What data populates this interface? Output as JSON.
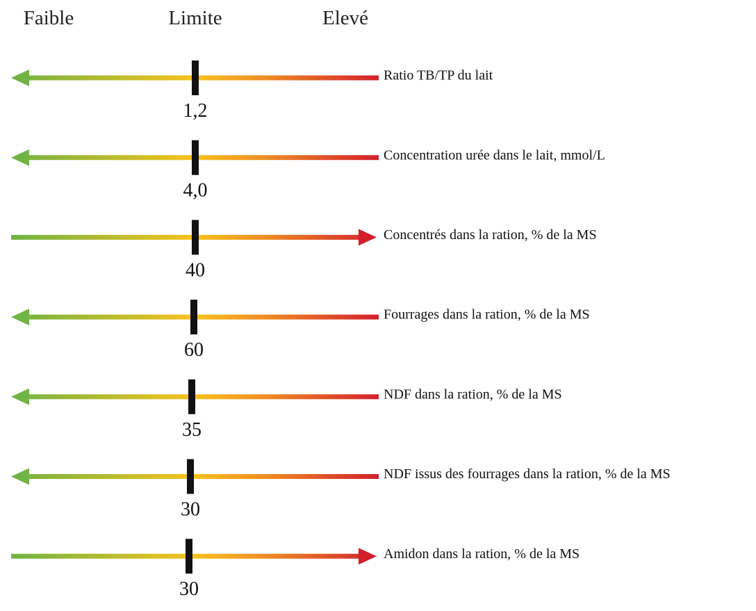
{
  "header": {
    "low": "Faible",
    "limit": "Limite",
    "high": "Elevé"
  },
  "rows": [
    {
      "label": "Ratio TB/TP du lait",
      "limit": "1,2",
      "arrow": "left"
    },
    {
      "label": "Concentration urée dans le lait, mmol/L",
      "limit": "4,0",
      "arrow": "left"
    },
    {
      "label": "Concentrés dans la ration, % de la MS",
      "limit": "40",
      "arrow": "right"
    },
    {
      "label": "Fourrages dans la ration, % de la MS",
      "limit": "60",
      "arrow": "left"
    },
    {
      "label": "NDF dans la ration, % de la MS",
      "limit": "35",
      "arrow": "left"
    },
    {
      "label": "NDF issus des fourrages dans la ration, % de la MS",
      "limit": "30",
      "arrow": "left"
    },
    {
      "label": "Amidon dans la ration, % de la MS",
      "limit": "30",
      "arrow": "right"
    }
  ]
}
